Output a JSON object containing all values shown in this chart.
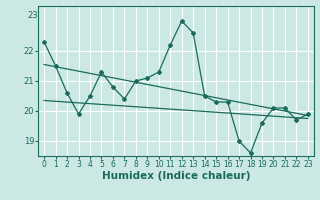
{
  "title": "",
  "xlabel": "Humidex (Indice chaleur)",
  "background_color": "#cce8e4",
  "grid_color": "#ffffff",
  "line_color": "#1a6b5a",
  "x_values": [
    0,
    1,
    2,
    3,
    4,
    5,
    6,
    7,
    8,
    9,
    10,
    11,
    12,
    13,
    14,
    15,
    16,
    17,
    18,
    19,
    20,
    21,
    22,
    23
  ],
  "main_line": [
    22.3,
    21.5,
    20.6,
    19.9,
    20.5,
    21.3,
    20.8,
    20.4,
    21.0,
    21.1,
    21.3,
    22.2,
    23.0,
    22.6,
    20.5,
    20.3,
    20.3,
    19.0,
    18.6,
    19.6,
    20.1,
    20.1,
    19.7,
    19.9
  ],
  "trend_line1_start_x": 0,
  "trend_line1_start_y": 21.55,
  "trend_line1_end_x": 23,
  "trend_line1_end_y": 19.85,
  "trend_line2_start_x": 0,
  "trend_line2_start_y": 20.35,
  "trend_line2_end_x": 23,
  "trend_line2_end_y": 19.75,
  "ylim_min": 18.5,
  "ylim_max": 23.5,
  "yticks": [
    19,
    20,
    21,
    22
  ],
  "ytop_label": "23",
  "xlim_min": -0.5,
  "xlim_max": 23.5,
  "tick_fontsize": 5.5,
  "label_fontsize": 7.5
}
